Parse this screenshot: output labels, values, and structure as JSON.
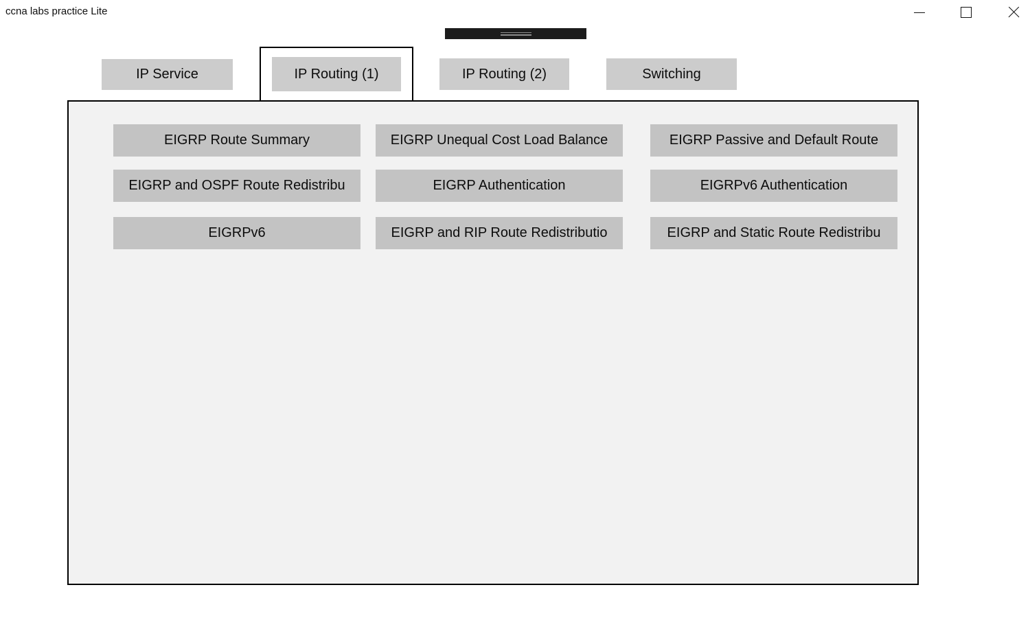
{
  "window": {
    "title": "ccna labs practice Lite"
  },
  "window_controls": {
    "minimize": "minimize-icon",
    "maximize": "maximize-icon",
    "close": "close-icon"
  },
  "tabs": [
    {
      "label": "IP Service",
      "selected": false
    },
    {
      "label": "IP Routing (1)",
      "selected": true
    },
    {
      "label": "IP Routing (2)",
      "selected": false
    },
    {
      "label": "Switching",
      "selected": false
    }
  ],
  "labs": [
    {
      "label": "EIGRP Route Summary"
    },
    {
      "label": "EIGRP Unequal Cost Load Balance"
    },
    {
      "label": "EIGRP Passive and Default Route"
    },
    {
      "label": "EIGRP and OSPF Route Redistribu"
    },
    {
      "label": "EIGRP Authentication"
    },
    {
      "label": "EIGRPv6 Authentication"
    },
    {
      "label": "EIGRPv6"
    },
    {
      "label": "EIGRP and RIP Route Redistributio"
    },
    {
      "label": "EIGRP and Static Route Redistribu"
    }
  ],
  "colors": {
    "window_bg": "#ffffff",
    "tab_button_bg": "#cccccc",
    "lab_button_bg": "#c3c3c3",
    "panel_bg": "#f2f2f2",
    "panel_border": "#000000",
    "selected_tab_border": "#000000",
    "handle_bg": "#1c1c1c",
    "handle_line": "#8c8c8c",
    "text": "#000000"
  }
}
